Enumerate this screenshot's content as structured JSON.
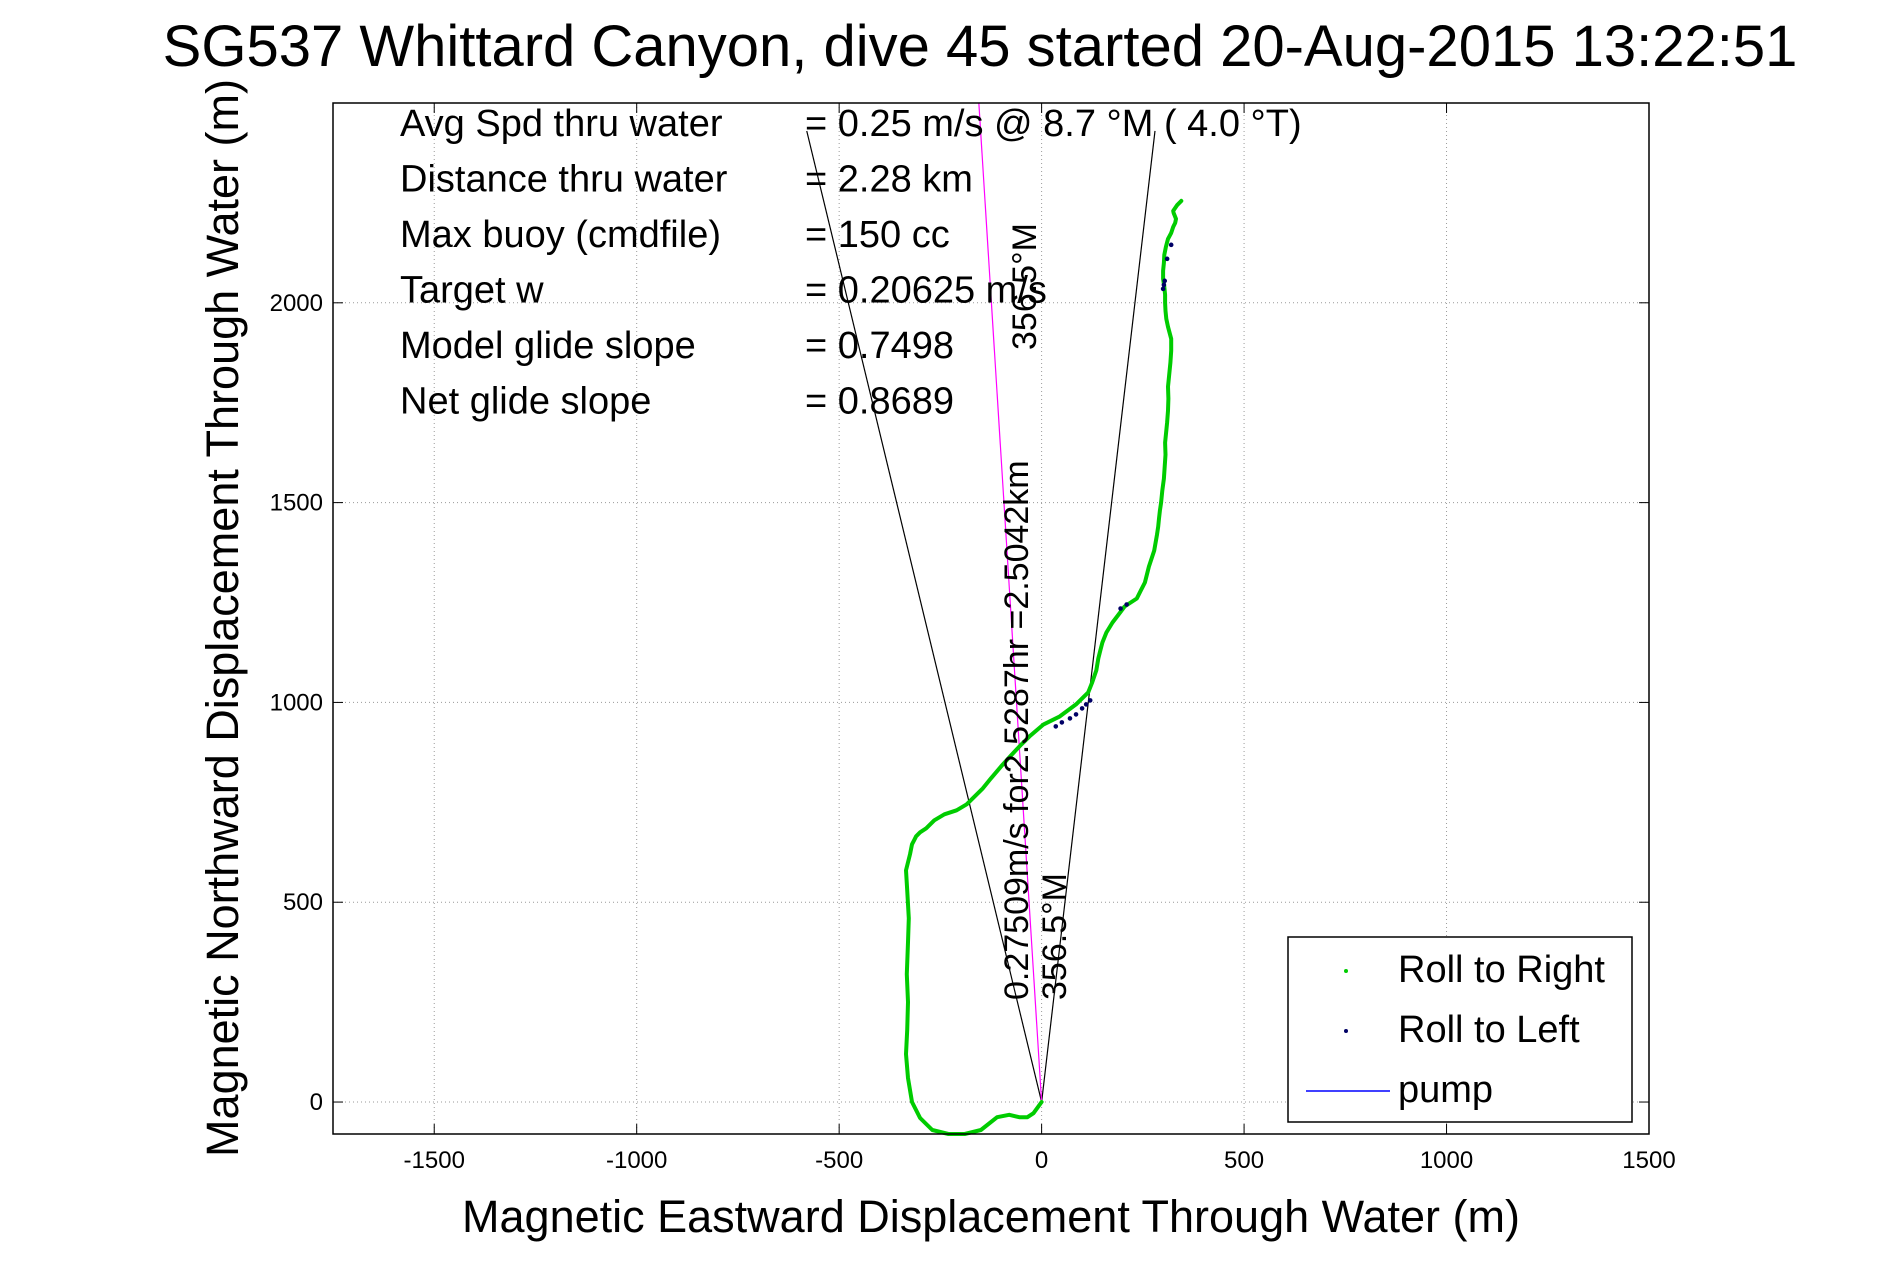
{
  "chart_data": {
    "type": "line",
    "title": "SG537 Whittard Canyon, dive 45 started 20-Aug-2015 13:22:51",
    "xlabel": "Magnetic Eastward Displacement Through Water (m)",
    "ylabel": "Magnetic Northward Displacement Through Water (m)",
    "xlim": [
      -1750,
      1500
    ],
    "ylim": [
      -80,
      2500
    ],
    "x_ticks": [
      -1500,
      -1000,
      -500,
      0,
      500,
      1000,
      1500
    ],
    "x_tick_labels": [
      "-1500",
      "-1000",
      "-500",
      "0",
      "500",
      "1000",
      "1500"
    ],
    "y_ticks": [
      0,
      500,
      1000,
      1500,
      2000
    ],
    "y_tick_labels": [
      "0",
      "500",
      "1000",
      "1500",
      "2000"
    ],
    "grid": true,
    "legend_position": "bottom-right",
    "stats": [
      {
        "label": "Avg Spd thru water",
        "value": "=  0.25 m/s @   8.7 °M (  4.0 °T)"
      },
      {
        "label": "Distance thru water",
        "value": "=  2.28 km"
      },
      {
        "label": "Max buoy (cmdfile)",
        "value": "= 150 cc"
      },
      {
        "label": "Target w",
        "value": "= 0.20625 m/s"
      },
      {
        "label": "Model glide slope",
        "value": "= 0.7498"
      },
      {
        "label": "Net glide slope",
        "value": "= 0.8689"
      }
    ],
    "annotations": {
      "rotated_speed": "0.27509m/s for2.5287hr =2.5042km",
      "heading_bottom": "356.5°M",
      "heading_top": "356.5°M"
    },
    "guide_lines": [
      {
        "points": [
          [
            0,
            0
          ],
          [
            -580,
            2430
          ]
        ],
        "color": "#000000"
      },
      {
        "points": [
          [
            0,
            0
          ],
          [
            280,
            2430
          ]
        ],
        "color": "#000000"
      },
      {
        "points": [
          [
            0,
            0
          ],
          [
            -155,
            2500
          ]
        ],
        "color": "#ff00ff"
      }
    ],
    "series": [
      {
        "name": "Roll to Right",
        "color": "#00cc00",
        "x": [
          0,
          -20,
          -35,
          -55,
          -80,
          -110,
          -150,
          -190,
          -230,
          -270,
          -300,
          -320,
          -330,
          -335,
          -332,
          -330,
          -333,
          -330,
          -328,
          -332,
          -335,
          -330,
          -325,
          -322,
          -320,
          -315,
          -310,
          -300,
          -285,
          -265,
          -240,
          -210,
          -185,
          -165,
          -145,
          -125,
          -100,
          -75,
          -50,
          -30,
          -15,
          5,
          25,
          45,
          65,
          85,
          100,
          115,
          125,
          135,
          140,
          145,
          150,
          160,
          175,
          190,
          205,
          220,
          235,
          245,
          255,
          265,
          278,
          285,
          288,
          290,
          292,
          295,
          298,
          302,
          304,
          306,
          305,
          308,
          310,
          312,
          313,
          312,
          315,
          318,
          320,
          320,
          312,
          308,
          306,
          305,
          305,
          303,
          300,
          300,
          302,
          303,
          307,
          312,
          320,
          325,
          330,
          332,
          328,
          326,
          325,
          335,
          345
        ],
        "y": [
          0,
          -28,
          -38,
          -38,
          -32,
          -38,
          -70,
          -80,
          -80,
          -70,
          -40,
          0,
          60,
          120,
          180,
          250,
          320,
          400,
          460,
          530,
          580,
          600,
          620,
          635,
          645,
          655,
          665,
          675,
          685,
          705,
          720,
          730,
          745,
          765,
          785,
          810,
          840,
          868,
          895,
          915,
          928,
          945,
          955,
          965,
          980,
          995,
          1010,
          1025,
          1050,
          1080,
          1110,
          1130,
          1150,
          1175,
          1200,
          1220,
          1240,
          1250,
          1260,
          1280,
          1300,
          1340,
          1380,
          1420,
          1440,
          1460,
          1480,
          1500,
          1530,
          1560,
          1590,
          1620,
          1650,
          1680,
          1700,
          1730,
          1760,
          1790,
          1820,
          1850,
          1880,
          1910,
          1940,
          1960,
          1980,
          2000,
          2020,
          2040,
          2060,
          2080,
          2100,
          2120,
          2140,
          2160,
          2175,
          2190,
          2200,
          2210,
          2220,
          2225,
          2230,
          2245,
          2255
        ]
      },
      {
        "name": "Roll to Left",
        "color": "#000066",
        "x": [
          35,
          50,
          70,
          85,
          100,
          110,
          120,
          195,
          210,
          300,
          302,
          304,
          310,
          320
        ],
        "y": [
          940,
          950,
          960,
          970,
          985,
          995,
          1005,
          1235,
          1245,
          2035,
          2045,
          2055,
          2110,
          2145
        ]
      },
      {
        "name": "pump",
        "color": "#0000ff",
        "x": [],
        "y": []
      }
    ]
  }
}
